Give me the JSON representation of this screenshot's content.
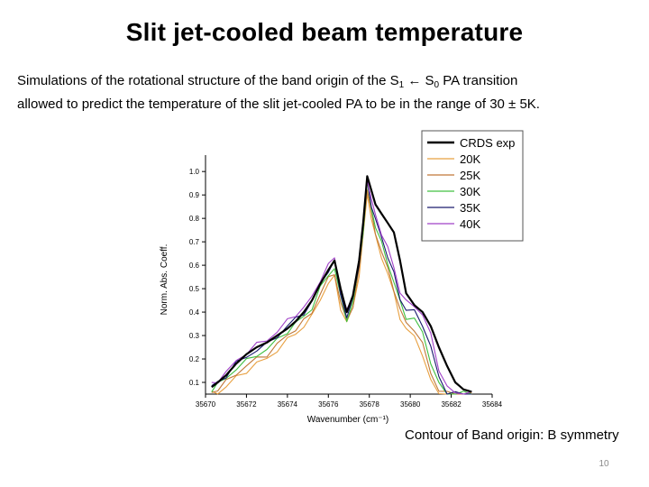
{
  "slide": {
    "title": "Slit jet-cooled beam temperature",
    "desc_line1_pre": "Simulations of the rotational structure of the band origin of the S",
    "desc_sub1": "1",
    "desc_arrow": " ← S",
    "desc_sub2": "0",
    "desc_line1_post": " PA transition",
    "desc_line2": "allowed to predict the temperature of the slit jet-cooled PA to be in the range of 30 ± 5K.",
    "caption": "Contour of Band origin: B symmetry",
    "page_number": "10"
  },
  "chart_data": {
    "type": "line",
    "xlabel": "Wavenumber (cm⁻¹)",
    "ylabel": "Norm. Abs. Coeff.",
    "xlim": [
      35670,
      35684
    ],
    "ylim": [
      0.05,
      1.07
    ],
    "xticks": [
      35670,
      35672,
      35674,
      35676,
      35678,
      35680,
      35682,
      35684
    ],
    "yticks": [
      0.1,
      0.2,
      0.3,
      0.4,
      0.5,
      0.6,
      0.7,
      0.8,
      0.9,
      1.0
    ],
    "ytick_labels": [
      "0.1",
      "0.2",
      "0.3",
      "0.4",
      "0.5",
      "0.6",
      "0.7",
      "0.8",
      "0.9",
      "1.0"
    ],
    "legend_position": "top-right",
    "series": [
      {
        "name": "CRDS exp",
        "color": "#000000",
        "x": [
          35670.3,
          35670.6,
          35671,
          35671.5,
          35672,
          35672.5,
          35673,
          35673.5,
          35674,
          35674.4,
          35674.8,
          35675.2,
          35675.6,
          35676,
          35676.3,
          35676.6,
          35676.9,
          35677.2,
          35677.5,
          35677.7,
          35677.9,
          35678.1,
          35678.3,
          35678.6,
          35678.9,
          35679.2,
          35679.5,
          35679.8,
          35680.2,
          35680.6,
          35681,
          35681.4,
          35681.8,
          35682.2,
          35682.6,
          35683
        ],
        "y": [
          0.08,
          0.1,
          0.13,
          0.18,
          0.22,
          0.25,
          0.27,
          0.3,
          0.33,
          0.36,
          0.4,
          0.45,
          0.52,
          0.58,
          0.62,
          0.5,
          0.4,
          0.47,
          0.62,
          0.78,
          0.98,
          0.92,
          0.86,
          0.82,
          0.78,
          0.74,
          0.62,
          0.48,
          0.43,
          0.4,
          0.34,
          0.25,
          0.17,
          0.1,
          0.07,
          0.06
        ]
      },
      {
        "name": "20K",
        "color": "#e8a040",
        "x": [
          35670.3,
          35670.6,
          35671,
          35671.5,
          35672,
          35672.5,
          35673,
          35673.5,
          35674,
          35674.4,
          35674.8,
          35675.2,
          35675.6,
          35676,
          35676.3,
          35676.6,
          35676.9,
          35677.2,
          35677.5,
          35677.7,
          35677.9,
          35678.1,
          35678.3,
          35678.6,
          35678.9,
          35679.2,
          35679.5,
          35679.8,
          35680.2,
          35680.6,
          35681,
          35681.4,
          35681.8,
          35682.2,
          35682.6,
          35683
        ],
        "y": [
          0.05,
          0.06,
          0.08,
          0.12,
          0.15,
          0.18,
          0.2,
          0.24,
          0.28,
          0.31,
          0.34,
          0.38,
          0.46,
          0.52,
          0.55,
          0.42,
          0.35,
          0.42,
          0.56,
          0.72,
          0.91,
          0.8,
          0.72,
          0.64,
          0.56,
          0.48,
          0.38,
          0.32,
          0.3,
          0.22,
          0.1,
          0.06,
          0.05,
          0.05,
          0.05,
          0.05
        ]
      },
      {
        "name": "25K",
        "color": "#c07838",
        "x": [
          35670.3,
          35670.6,
          35671,
          35671.5,
          35672,
          35672.5,
          35673,
          35673.5,
          35674,
          35674.4,
          35674.8,
          35675.2,
          35675.6,
          35676,
          35676.3,
          35676.6,
          35676.9,
          35677.2,
          35677.5,
          35677.7,
          35677.9,
          35678.1,
          35678.3,
          35678.6,
          35678.9,
          35679.2,
          35679.5,
          35679.8,
          35680.2,
          35680.6,
          35681,
          35681.4,
          35681.8,
          35682.2,
          35682.6,
          35683
        ],
        "y": [
          0.06,
          0.07,
          0.1,
          0.14,
          0.17,
          0.2,
          0.22,
          0.26,
          0.3,
          0.33,
          0.36,
          0.4,
          0.48,
          0.54,
          0.57,
          0.44,
          0.36,
          0.43,
          0.58,
          0.74,
          0.93,
          0.82,
          0.74,
          0.66,
          0.58,
          0.5,
          0.41,
          0.35,
          0.33,
          0.26,
          0.14,
          0.07,
          0.05,
          0.05,
          0.05,
          0.05
        ]
      },
      {
        "name": "30K",
        "color": "#40c040",
        "x": [
          35670.3,
          35670.6,
          35671,
          35671.5,
          35672,
          35672.5,
          35673,
          35673.5,
          35674,
          35674.4,
          35674.8,
          35675.2,
          35675.6,
          35676,
          35676.3,
          35676.6,
          35676.9,
          35677.2,
          35677.5,
          35677.7,
          35677.9,
          35678.1,
          35678.3,
          35678.6,
          35678.9,
          35679.2,
          35679.5,
          35679.8,
          35680.2,
          35680.6,
          35681,
          35681.4,
          35681.8,
          35682.2,
          35682.6,
          35683
        ],
        "y": [
          0.07,
          0.09,
          0.12,
          0.16,
          0.19,
          0.22,
          0.24,
          0.28,
          0.32,
          0.35,
          0.38,
          0.42,
          0.5,
          0.56,
          0.59,
          0.46,
          0.37,
          0.44,
          0.6,
          0.75,
          0.95,
          0.84,
          0.77,
          0.69,
          0.61,
          0.53,
          0.44,
          0.38,
          0.37,
          0.31,
          0.19,
          0.09,
          0.05,
          0.05,
          0.05,
          0.05
        ]
      },
      {
        "name": "35K",
        "color": "#1a1a6e",
        "x": [
          35670.3,
          35670.6,
          35671,
          35671.5,
          35672,
          35672.5,
          35673,
          35673.5,
          35674,
          35674.4,
          35674.8,
          35675.2,
          35675.6,
          35676,
          35676.3,
          35676.6,
          35676.9,
          35677.2,
          35677.5,
          35677.7,
          35677.9,
          35678.1,
          35678.3,
          35678.6,
          35678.9,
          35679.2,
          35679.5,
          35679.8,
          35680.2,
          35680.6,
          35681,
          35681.4,
          35681.8,
          35682.2,
          35682.6,
          35683
        ],
        "y": [
          0.08,
          0.1,
          0.13,
          0.18,
          0.21,
          0.24,
          0.26,
          0.3,
          0.34,
          0.37,
          0.4,
          0.44,
          0.52,
          0.58,
          0.61,
          0.48,
          0.38,
          0.45,
          0.61,
          0.76,
          0.96,
          0.86,
          0.79,
          0.72,
          0.64,
          0.56,
          0.46,
          0.41,
          0.4,
          0.35,
          0.25,
          0.12,
          0.06,
          0.05,
          0.05,
          0.05
        ]
      },
      {
        "name": "40K",
        "color": "#a040c8",
        "x": [
          35670.3,
          35670.6,
          35671,
          35671.5,
          35672,
          35672.5,
          35673,
          35673.5,
          35674,
          35674.4,
          35674.8,
          35675.2,
          35675.6,
          35676,
          35676.3,
          35676.6,
          35676.9,
          35677.2,
          35677.5,
          35677.7,
          35677.9,
          35678.1,
          35678.3,
          35678.6,
          35678.9,
          35679.2,
          35679.5,
          35679.8,
          35680.2,
          35680.6,
          35681,
          35681.4,
          35681.8,
          35682.2,
          35682.6,
          35683
        ],
        "y": [
          0.09,
          0.11,
          0.14,
          0.19,
          0.23,
          0.26,
          0.28,
          0.32,
          0.36,
          0.39,
          0.42,
          0.46,
          0.54,
          0.6,
          0.63,
          0.5,
          0.4,
          0.47,
          0.63,
          0.78,
          0.97,
          0.88,
          0.81,
          0.74,
          0.67,
          0.59,
          0.49,
          0.44,
          0.43,
          0.39,
          0.3,
          0.16,
          0.08,
          0.05,
          0.05,
          0.05
        ]
      }
    ]
  }
}
